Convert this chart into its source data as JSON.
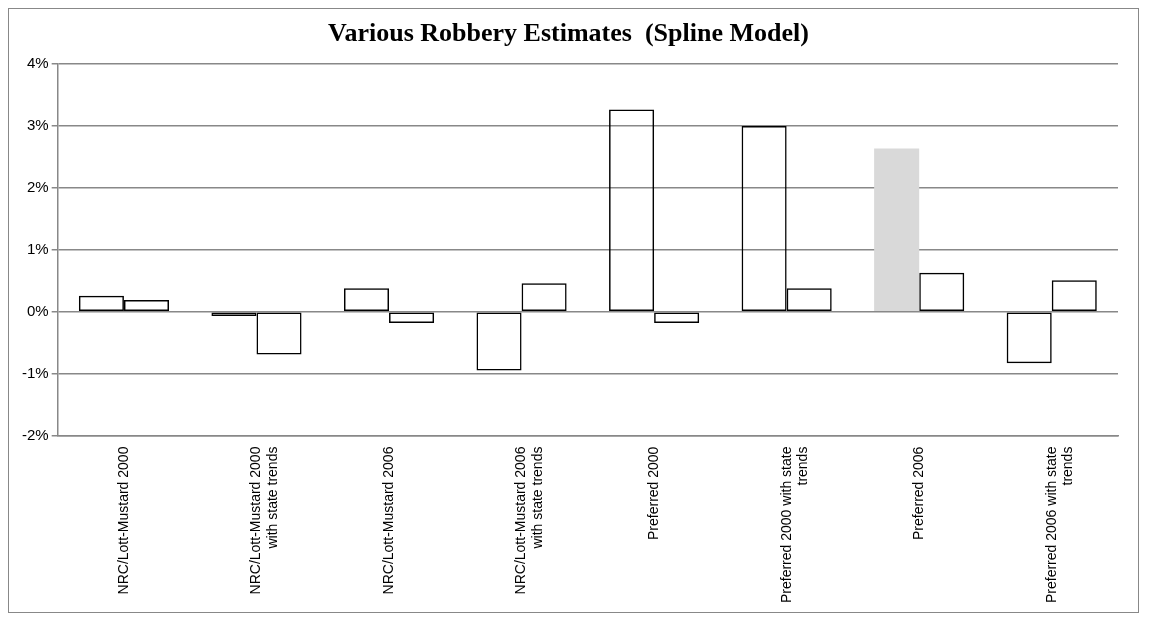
{
  "chart_data": {
    "type": "bar",
    "title": "Various Robbery Estimates  (Spline Model)",
    "categories": [
      "NRC/Lott-Mustard  2000",
      "NRC/Lott-Mustard  2000 with state trends",
      "NRC/Lott-Mustard  2006",
      "NRC/Lott-Mustard  2006 with state trends",
      "Preferred 2000",
      "Preferred 2000 with state trends",
      "Preferred 2006",
      "Preferred 2006 with state trends"
    ],
    "series": [
      {
        "colors": [
          "#000000",
          "#000000",
          "#000000",
          "#000000",
          "#000000",
          "#000000",
          "#d9d9d9",
          "#000000"
        ],
        "values": [
          0.26,
          -0.07,
          0.38,
          -0.95,
          3.27,
          3.0,
          2.64,
          -0.83
        ]
      },
      {
        "color": "#000000",
        "values": [
          0.19,
          -0.69,
          -0.18,
          0.46,
          -0.18,
          0.38,
          0.63,
          0.51
        ]
      }
    ],
    "ylim": [
      -2,
      4
    ],
    "yticks": [
      {
        "value": -2,
        "label": "-2%"
      },
      {
        "value": -1,
        "label": "-1%"
      },
      {
        "value": 0,
        "label": "0%"
      },
      {
        "value": 1,
        "label": "1%"
      },
      {
        "value": 2,
        "label": "2%"
      },
      {
        "value": 3,
        "label": "3%"
      },
      {
        "value": 4,
        "label": "4%"
      }
    ],
    "grid": "y",
    "legend": false
  }
}
